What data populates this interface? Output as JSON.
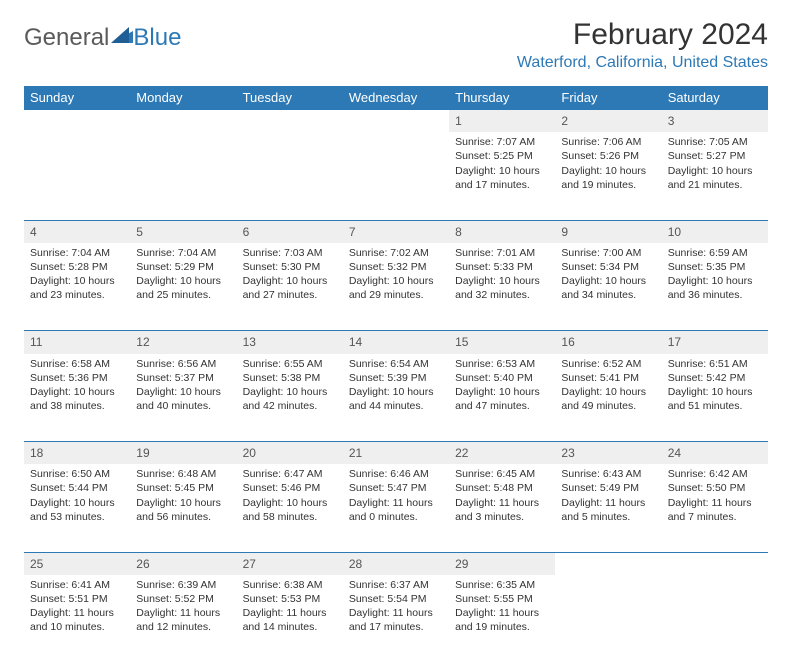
{
  "brand": {
    "text1": "General",
    "text2": "Blue"
  },
  "title": "February 2024",
  "location": "Waterford, California, United States",
  "colors": {
    "headerBg": "#2d79b5",
    "headerText": "#ffffff",
    "dayNumBg": "#efefef",
    "borderTop": "#2d79b5",
    "bodyText": "#333333",
    "locationText": "#2d79b5"
  },
  "dayHeaders": [
    "Sunday",
    "Monday",
    "Tuesday",
    "Wednesday",
    "Thursday",
    "Friday",
    "Saturday"
  ],
  "weeks": [
    [
      null,
      null,
      null,
      null,
      {
        "n": "1",
        "sr": "7:07 AM",
        "ss": "5:25 PM",
        "dl": "10 hours and 17 minutes."
      },
      {
        "n": "2",
        "sr": "7:06 AM",
        "ss": "5:26 PM",
        "dl": "10 hours and 19 minutes."
      },
      {
        "n": "3",
        "sr": "7:05 AM",
        "ss": "5:27 PM",
        "dl": "10 hours and 21 minutes."
      }
    ],
    [
      {
        "n": "4",
        "sr": "7:04 AM",
        "ss": "5:28 PM",
        "dl": "10 hours and 23 minutes."
      },
      {
        "n": "5",
        "sr": "7:04 AM",
        "ss": "5:29 PM",
        "dl": "10 hours and 25 minutes."
      },
      {
        "n": "6",
        "sr": "7:03 AM",
        "ss": "5:30 PM",
        "dl": "10 hours and 27 minutes."
      },
      {
        "n": "7",
        "sr": "7:02 AM",
        "ss": "5:32 PM",
        "dl": "10 hours and 29 minutes."
      },
      {
        "n": "8",
        "sr": "7:01 AM",
        "ss": "5:33 PM",
        "dl": "10 hours and 32 minutes."
      },
      {
        "n": "9",
        "sr": "7:00 AM",
        "ss": "5:34 PM",
        "dl": "10 hours and 34 minutes."
      },
      {
        "n": "10",
        "sr": "6:59 AM",
        "ss": "5:35 PM",
        "dl": "10 hours and 36 minutes."
      }
    ],
    [
      {
        "n": "11",
        "sr": "6:58 AM",
        "ss": "5:36 PM",
        "dl": "10 hours and 38 minutes."
      },
      {
        "n": "12",
        "sr": "6:56 AM",
        "ss": "5:37 PM",
        "dl": "10 hours and 40 minutes."
      },
      {
        "n": "13",
        "sr": "6:55 AM",
        "ss": "5:38 PM",
        "dl": "10 hours and 42 minutes."
      },
      {
        "n": "14",
        "sr": "6:54 AM",
        "ss": "5:39 PM",
        "dl": "10 hours and 44 minutes."
      },
      {
        "n": "15",
        "sr": "6:53 AM",
        "ss": "5:40 PM",
        "dl": "10 hours and 47 minutes."
      },
      {
        "n": "16",
        "sr": "6:52 AM",
        "ss": "5:41 PM",
        "dl": "10 hours and 49 minutes."
      },
      {
        "n": "17",
        "sr": "6:51 AM",
        "ss": "5:42 PM",
        "dl": "10 hours and 51 minutes."
      }
    ],
    [
      {
        "n": "18",
        "sr": "6:50 AM",
        "ss": "5:44 PM",
        "dl": "10 hours and 53 minutes."
      },
      {
        "n": "19",
        "sr": "6:48 AM",
        "ss": "5:45 PM",
        "dl": "10 hours and 56 minutes."
      },
      {
        "n": "20",
        "sr": "6:47 AM",
        "ss": "5:46 PM",
        "dl": "10 hours and 58 minutes."
      },
      {
        "n": "21",
        "sr": "6:46 AM",
        "ss": "5:47 PM",
        "dl": "11 hours and 0 minutes."
      },
      {
        "n": "22",
        "sr": "6:45 AM",
        "ss": "5:48 PM",
        "dl": "11 hours and 3 minutes."
      },
      {
        "n": "23",
        "sr": "6:43 AM",
        "ss": "5:49 PM",
        "dl": "11 hours and 5 minutes."
      },
      {
        "n": "24",
        "sr": "6:42 AM",
        "ss": "5:50 PM",
        "dl": "11 hours and 7 minutes."
      }
    ],
    [
      {
        "n": "25",
        "sr": "6:41 AM",
        "ss": "5:51 PM",
        "dl": "11 hours and 10 minutes."
      },
      {
        "n": "26",
        "sr": "6:39 AM",
        "ss": "5:52 PM",
        "dl": "11 hours and 12 minutes."
      },
      {
        "n": "27",
        "sr": "6:38 AM",
        "ss": "5:53 PM",
        "dl": "11 hours and 14 minutes."
      },
      {
        "n": "28",
        "sr": "6:37 AM",
        "ss": "5:54 PM",
        "dl": "11 hours and 17 minutes."
      },
      {
        "n": "29",
        "sr": "6:35 AM",
        "ss": "5:55 PM",
        "dl": "11 hours and 19 minutes."
      },
      null,
      null
    ]
  ],
  "labels": {
    "sunrise": "Sunrise: ",
    "sunset": "Sunset: ",
    "daylight": "Daylight: "
  }
}
